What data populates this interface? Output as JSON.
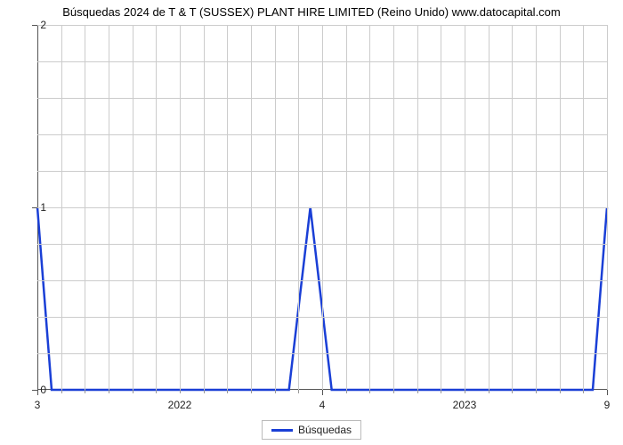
{
  "title": "Búsquedas 2024 de T & T (SUSSEX) PLANT HIRE LIMITED (Reino Unido) www.datocapital.com",
  "chart": {
    "type": "line",
    "background_color": "#ffffff",
    "grid_color": "#cccccc",
    "axis_color": "#555555",
    "line_color": "#1a3fd6",
    "line_width": 2.5,
    "title_fontsize": 13,
    "tick_fontsize": 12,
    "x": {
      "min": 0,
      "max": 24,
      "major_ticks": [
        0,
        12,
        24
      ],
      "major_labels_bottom": [
        "3",
        "4",
        "9"
      ],
      "year_tick_positions": [
        6,
        18
      ],
      "year_labels_bottom": [
        "2022",
        "2023"
      ],
      "minor_step": 1,
      "minor_tick_color": "#999999"
    },
    "y": {
      "min": 0,
      "max": 2,
      "ticks": [
        0,
        1,
        2
      ],
      "labels": [
        "0",
        "1",
        "2"
      ],
      "minor_subgrid_count": 4
    },
    "series": {
      "name": "Búsquedas",
      "points": [
        [
          0,
          1.0
        ],
        [
          0.6,
          0.0
        ],
        [
          10.6,
          0.0
        ],
        [
          11.5,
          1.0
        ],
        [
          12.4,
          0.0
        ],
        [
          23.4,
          0.0
        ],
        [
          24,
          1.0
        ]
      ]
    },
    "legend": {
      "label": "Búsquedas",
      "position": "bottom-center",
      "border_color": "#bbbbbb"
    }
  }
}
